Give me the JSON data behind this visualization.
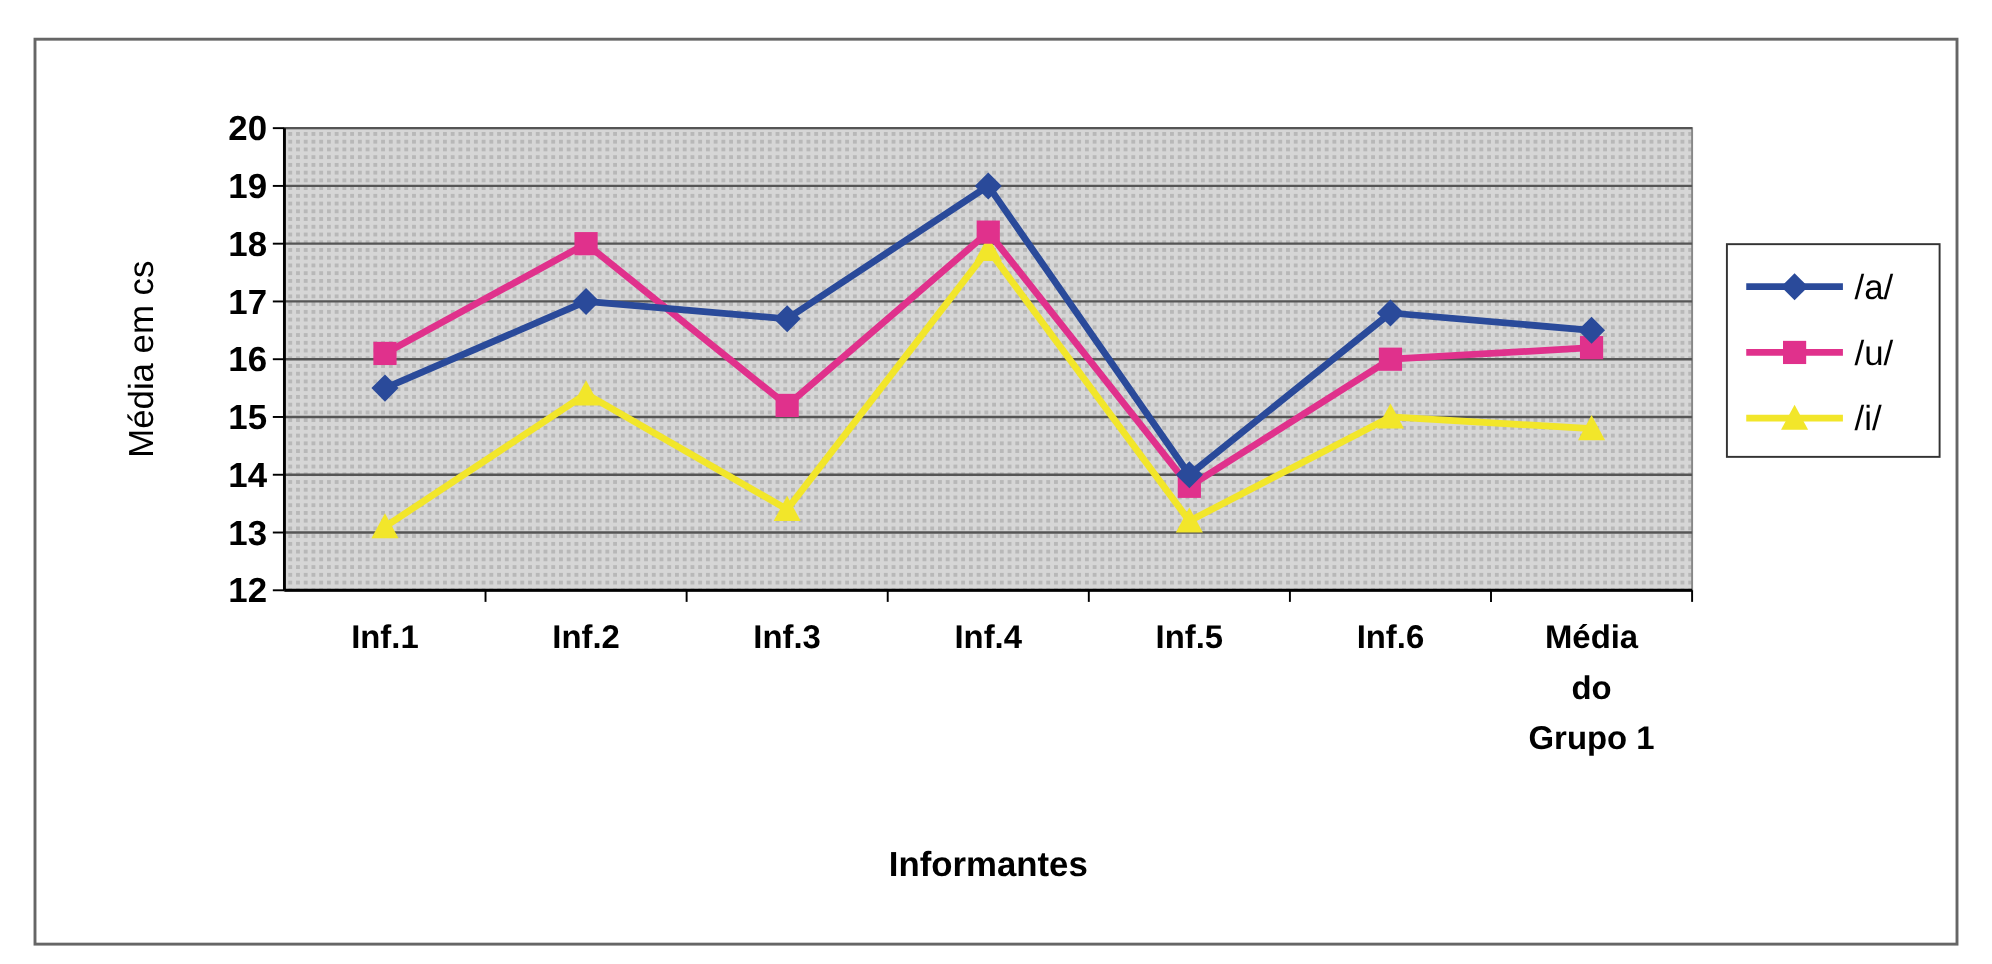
{
  "chart_data": {
    "type": "line",
    "xlabel": "Informantes",
    "ylabel": "Média em cs",
    "categories": [
      "Inf.1",
      "Inf.2",
      "Inf.3",
      "Inf.4",
      "Inf.5",
      "Inf.6",
      "Média do Grupo 1"
    ],
    "series": [
      {
        "name": "/a/",
        "color": "#2a4a9a",
        "marker": "diamond",
        "values": [
          15.5,
          17,
          16.7,
          19,
          14,
          16.8,
          16.5
        ]
      },
      {
        "name": "/u/",
        "color": "#e0318c",
        "marker": "square",
        "values": [
          16.1,
          18,
          15.2,
          18.2,
          13.8,
          16,
          16.2
        ]
      },
      {
        "name": "/i/",
        "color": "#f2e62a",
        "marker": "triangle",
        "values": [
          13.1,
          15.4,
          13.4,
          17.9,
          13.2,
          15,
          14.8
        ]
      }
    ],
    "ylim": [
      12,
      20
    ],
    "yticks": [
      12,
      13,
      14,
      15,
      16,
      17,
      18,
      19,
      20
    ],
    "grid": "y",
    "legend": "right"
  }
}
